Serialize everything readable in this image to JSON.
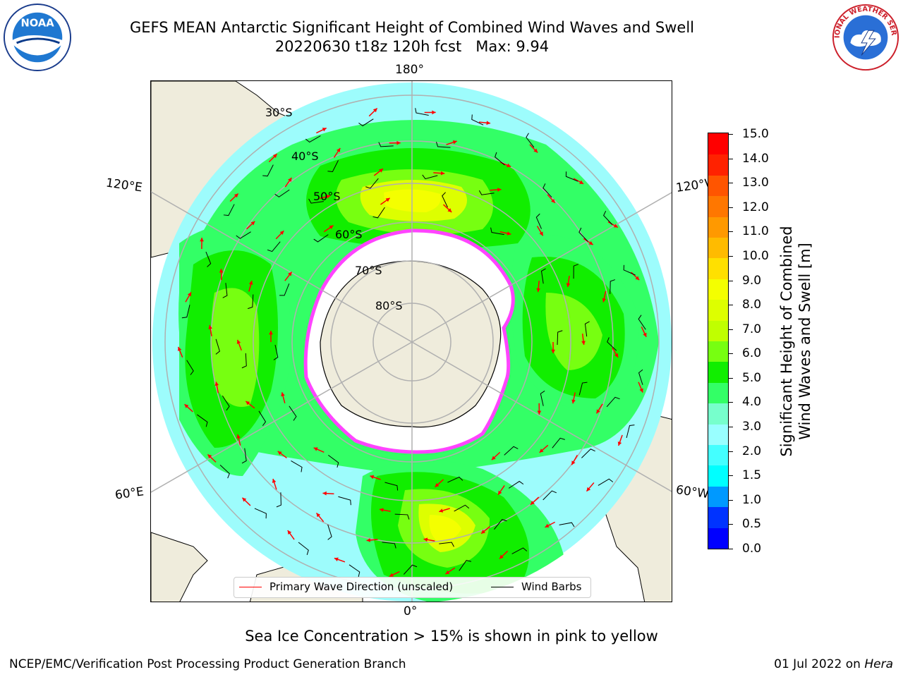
{
  "header": {
    "title_line1": "GEFS MEAN Antarctic Significant Height of Combined Wind Waves and Swell",
    "title_line2": "20220630 t18z 120h fcst   Max: 9.94",
    "left_logo_icon": "noaa-logo-icon",
    "left_logo_text": "NOAA",
    "right_logo_icon": "national-weather-service-logo-icon",
    "right_logo_text": "NATIONAL WEATHER SERVICE"
  },
  "map": {
    "projection": "south-polar-stereographic",
    "longitude_labels": {
      "top": "180°",
      "bottom": "0°",
      "upper_left": "120°E",
      "upper_right": "120°W",
      "lower_left": "60°E",
      "lower_right": "60°W"
    },
    "latitude_labels": [
      "30°S",
      "40°S",
      "50°S",
      "60°S",
      "70°S",
      "80°S"
    ],
    "colors": {
      "land": "#efecdc",
      "ocean_low": "#9dfcfc",
      "sea_ice": "#ffffff",
      "ice_edge": "#ff44ff",
      "graticule": "#b0b0b0"
    }
  },
  "colorbar": {
    "label_line1": "Significant Height of Combined",
    "label_line2": "Wind Waves and Swell [m]",
    "ticks": [
      "15.0",
      "14.0",
      "13.0",
      "12.0",
      "11.0",
      "10.0",
      "9.0",
      "8.0",
      "7.0",
      "6.0",
      "5.0",
      "4.0",
      "3.0",
      "2.0",
      "1.5",
      "1.0",
      "0.5",
      "0.0"
    ],
    "colors": [
      "#ff0000",
      "#ff2200",
      "#ff5500",
      "#ff7700",
      "#ff9900",
      "#ffbb00",
      "#ffe000",
      "#f4ff00",
      "#ddff00",
      "#c0ff00",
      "#77ff11",
      "#11ee00",
      "#33ff66",
      "#77ffcc",
      "#99ffff",
      "#44ffff",
      "#00ffff",
      "#0099ff",
      "#0033ff",
      "#0000ff"
    ]
  },
  "legend": {
    "wave_label": "Primary Wave Direction (unscaled)",
    "wind_label": "Wind Barbs",
    "wave_color": "#ff0000",
    "wind_color": "#000000"
  },
  "notes": {
    "ice_note": "Sea Ice Concentration > 15% is shown in pink to yellow",
    "footer_left": "NCEP/EMC/Verification Post Processing Product Generation Branch",
    "footer_date": "01 Jul 2022 on",
    "footer_host": "Hera"
  }
}
